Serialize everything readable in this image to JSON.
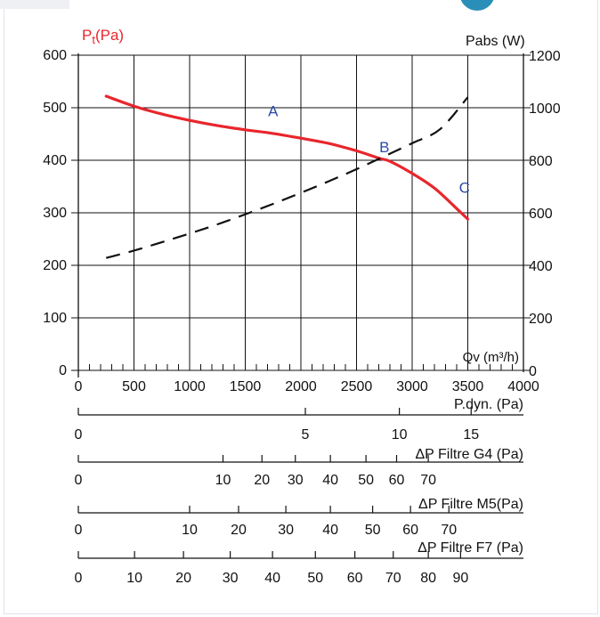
{
  "chart_data": {
    "type": "line",
    "left_axis_label_main": "P",
    "left_axis_label_sub": "t",
    "left_axis_label_unit": "(Pa)",
    "right_axis_label": "Pabs (W)",
    "x_axis_label": "Qv (m³/h)",
    "x_range": [
      0,
      4000
    ],
    "x_ticks": [
      0,
      500,
      1000,
      1500,
      2000,
      2500,
      3000,
      3500,
      4000
    ],
    "y_left_range": [
      0,
      600
    ],
    "y_left_ticks": [
      0,
      100,
      200,
      300,
      400,
      500,
      600
    ],
    "y_right_range": [
      0,
      1200
    ],
    "y_right_ticks": [
      0,
      200,
      400,
      600,
      800,
      1000,
      1200
    ],
    "grid": true,
    "series": [
      {
        "axis": "left",
        "color": "#e8262c",
        "style": "solid",
        "points": [
          [
            250,
            522
          ],
          [
            500,
            503
          ],
          [
            750,
            488
          ],
          [
            1000,
            476
          ],
          [
            1250,
            466
          ],
          [
            1500,
            458
          ],
          [
            1750,
            451
          ],
          [
            2000,
            442
          ],
          [
            2250,
            432
          ],
          [
            2500,
            418
          ],
          [
            2700,
            404
          ],
          [
            2800,
            398
          ],
          [
            3000,
            375
          ],
          [
            3200,
            347
          ],
          [
            3400,
            308
          ],
          [
            3500,
            288
          ]
        ]
      },
      {
        "axis": "right",
        "color": "#111111",
        "style": "dashed",
        "points": [
          [
            250,
            428
          ],
          [
            500,
            456
          ],
          [
            750,
            488
          ],
          [
            1000,
            521
          ],
          [
            1250,
            556
          ],
          [
            1500,
            594
          ],
          [
            1750,
            634
          ],
          [
            2000,
            676
          ],
          [
            2250,
            720
          ],
          [
            2500,
            766
          ],
          [
            2750,
            815
          ],
          [
            3000,
            865
          ],
          [
            3250,
            918
          ],
          [
            3500,
            1040
          ]
        ]
      }
    ],
    "annotations": [
      {
        "text": "A",
        "x": 1750,
        "y": 484,
        "color": "#2a4aa8"
      },
      {
        "text": "B",
        "x": 2750,
        "y": 415,
        "color": "#2a4aa8"
      },
      {
        "text": "C",
        "x": 3470,
        "y": 338,
        "color": "#2a4aa8"
      }
    ],
    "secondary_scales": [
      {
        "label": "P.dyn. (Pa)",
        "ticks": [
          {
            "v": "0",
            "q": 0
          },
          {
            "v": "5",
            "q": 2040
          },
          {
            "v": "10",
            "q": 2885
          },
          {
            "v": "15",
            "q": 3530
          }
        ]
      },
      {
        "label": "ΔP Filtre G4 (Pa)",
        "ticks": [
          {
            "v": "0",
            "q": 0
          },
          {
            "v": "10",
            "q": 1300
          },
          {
            "v": "20",
            "q": 1650
          },
          {
            "v": "30",
            "q": 1950
          },
          {
            "v": "40",
            "q": 2265
          },
          {
            "v": "50",
            "q": 2585
          },
          {
            "v": "60",
            "q": 2860
          },
          {
            "v": "70",
            "q": 3145
          }
        ]
      },
      {
        "label": "ΔP Filtre M5(Pa)",
        "ticks": [
          {
            "v": "0",
            "q": 0
          },
          {
            "v": "10",
            "q": 1000
          },
          {
            "v": "20",
            "q": 1440
          },
          {
            "v": "30",
            "q": 1865
          },
          {
            "v": "40",
            "q": 2265
          },
          {
            "v": "50",
            "q": 2645
          },
          {
            "v": "60",
            "q": 2985
          },
          {
            "v": "70",
            "q": 3330
          }
        ]
      },
      {
        "label": "ΔP Filtre F7 (Pa)",
        "ticks": [
          {
            "v": "0",
            "q": 0
          },
          {
            "v": "10",
            "q": 505
          },
          {
            "v": "20",
            "q": 945
          },
          {
            "v": "30",
            "q": 1365
          },
          {
            "v": "40",
            "q": 1745
          },
          {
            "v": "50",
            "q": 2130
          },
          {
            "v": "60",
            "q": 2485
          },
          {
            "v": "70",
            "q": 2830
          },
          {
            "v": "80",
            "q": 3145
          },
          {
            "v": "90",
            "q": 3435
          }
        ]
      }
    ]
  }
}
